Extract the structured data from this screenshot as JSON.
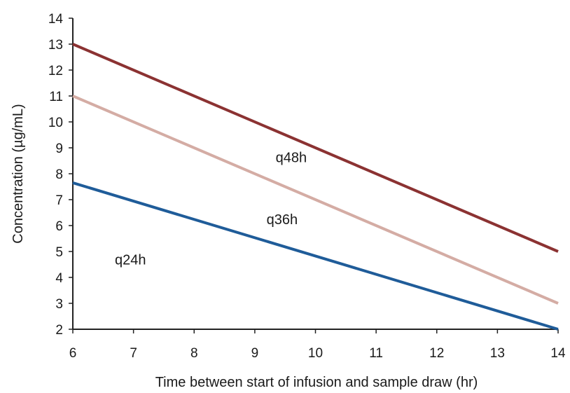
{
  "chart_data": {
    "type": "line",
    "xlabel": "Time between start of infusion and sample draw (hr)",
    "ylabel": "Concentration (µg/mL)",
    "xlim": [
      6,
      14
    ],
    "ylim": [
      2,
      14
    ],
    "x_ticks": [
      6,
      7,
      8,
      9,
      10,
      11,
      12,
      13,
      14
    ],
    "y_ticks": [
      2,
      3,
      4,
      5,
      6,
      7,
      8,
      9,
      10,
      11,
      12,
      13,
      14
    ],
    "grid": false,
    "legend": "none",
    "series": [
      {
        "name": "q48h",
        "color": "#8b3232",
        "x": [
          6,
          14
        ],
        "y": [
          13,
          5
        ]
      },
      {
        "name": "q36h",
        "color": "#d4aca4",
        "x": [
          6,
          14
        ],
        "y": [
          11,
          3
        ]
      },
      {
        "name": "q24h",
        "color": "#1f5c99",
        "x": [
          6,
          14
        ],
        "y": [
          7.65,
          2
        ]
      }
    ],
    "annotations": [
      {
        "text": "q48h",
        "x": 9.6,
        "y": 8.45
      },
      {
        "text": "q36h",
        "x": 9.45,
        "y": 6.05
      },
      {
        "text": "q24h",
        "x": 6.95,
        "y": 4.5
      }
    ]
  }
}
